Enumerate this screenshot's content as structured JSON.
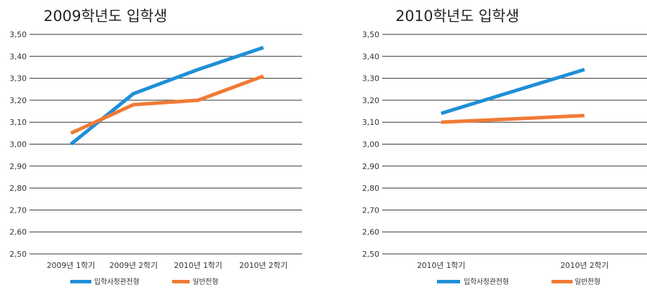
{
  "chart_data": [
    {
      "type": "line",
      "title": "2009학년도 입학생",
      "categories": [
        "2009년 1학기",
        "2009년 2학기",
        "2010년 1학기",
        "2010년 2학기"
      ],
      "y_ticks": [
        "3,50",
        "3,40",
        "3,30",
        "3,20",
        "3,10",
        "3,00",
        "2,90",
        "2,80",
        "2,70",
        "2,60",
        "2,50"
      ],
      "ylim": [
        2.5,
        3.5
      ],
      "grid": true,
      "series": [
        {
          "name": "입학사정관전형",
          "color": "#1f8fd6",
          "values": [
            3.0,
            3.23,
            3.34,
            3.44
          ]
        },
        {
          "name": "일반전형",
          "color": "#f07a35",
          "values": [
            3.05,
            3.18,
            3.2,
            3.31
          ]
        }
      ],
      "legend": "bottom"
    },
    {
      "type": "line",
      "title": "2010학년도 입학생",
      "categories": [
        "2010년 1학기",
        "2010년 2학기"
      ],
      "y_ticks": [
        "3,50",
        "3,40",
        "3,30",
        "3,20",
        "3,10",
        "3,00",
        "2,90",
        "2,80",
        "2,70",
        "2,60",
        "2,50"
      ],
      "ylim": [
        2.5,
        3.5
      ],
      "grid": true,
      "series": [
        {
          "name": "입학사정관전형",
          "color": "#1f8fd6",
          "values": [
            3.14,
            3.34
          ]
        },
        {
          "name": "일반전형",
          "color": "#f07a35",
          "values": [
            3.1,
            3.13
          ]
        }
      ],
      "legend": "bottom"
    }
  ]
}
